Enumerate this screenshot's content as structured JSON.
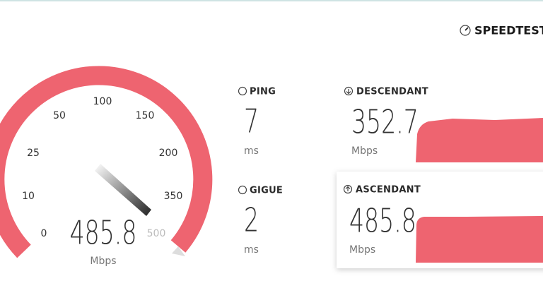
{
  "header": {
    "logo": "SPEEDTEST"
  },
  "gauge": {
    "scale": [
      0,
      10,
      25,
      50,
      100,
      150,
      200,
      350,
      500
    ],
    "value": "485.8",
    "unit": "Mbps"
  },
  "ping": {
    "label": "PING",
    "value": "7",
    "unit": "ms"
  },
  "jitter": {
    "label": "GIGUE",
    "value": "2",
    "unit": "ms"
  },
  "download": {
    "label": "DESCENDANT",
    "value": "352.7",
    "unit": "Mbps"
  },
  "upload": {
    "label": "ASCENDANT",
    "value": "485.8",
    "unit": "Mbps"
  }
}
